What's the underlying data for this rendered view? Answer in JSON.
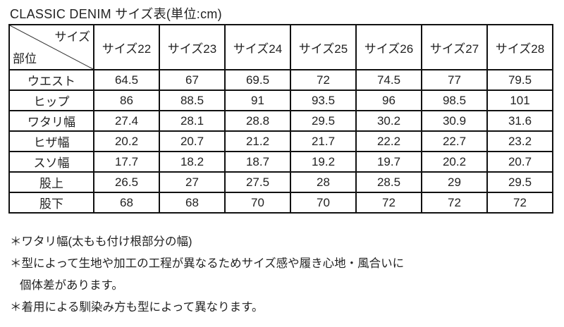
{
  "title": "CLASSIC DENIM サイズ表(単位:cm)",
  "table": {
    "corner_top": "サイズ",
    "corner_bottom": "部位",
    "columns": [
      "サイズ22",
      "サイズ23",
      "サイズ24",
      "サイズ25",
      "サイズ26",
      "サイズ27",
      "サイズ28"
    ],
    "rows": [
      {
        "label": "ウエスト",
        "values": [
          "64.5",
          "67",
          "69.5",
          "72",
          "74.5",
          "77",
          "79.5"
        ]
      },
      {
        "label": "ヒップ",
        "values": [
          "86",
          "88.5",
          "91",
          "93.5",
          "96",
          "98.5",
          "101"
        ]
      },
      {
        "label": "ワタリ幅",
        "values": [
          "27.4",
          "28.1",
          "28.8",
          "29.5",
          "30.2",
          "30.9",
          "31.6"
        ]
      },
      {
        "label": "ヒザ幅",
        "values": [
          "20.2",
          "20.7",
          "21.2",
          "21.7",
          "22.2",
          "22.7",
          "23.2"
        ]
      },
      {
        "label": "スソ幅",
        "values": [
          "17.7",
          "18.2",
          "18.7",
          "19.2",
          "19.7",
          "20.2",
          "20.7"
        ]
      },
      {
        "label": "股上",
        "values": [
          "26.5",
          "27",
          "27.5",
          "28",
          "28.5",
          "29",
          "29.5"
        ]
      },
      {
        "label": "股下",
        "values": [
          "68",
          "68",
          "70",
          "70",
          "72",
          "72",
          "72"
        ]
      }
    ]
  },
  "notes": [
    "＊ワタリ幅(太もも付け根部分の幅)",
    "＊型によって生地や加工の工程が異なるためサイズ感や履き心地・風合いに",
    "個体差があります。",
    "＊着用による馴染み方も型によって異なります。"
  ]
}
